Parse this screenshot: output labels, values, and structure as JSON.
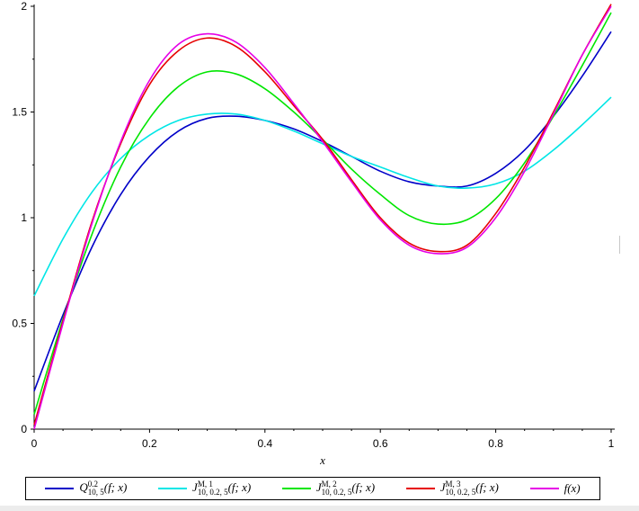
{
  "chart_data": {
    "type": "line",
    "xlabel": "x",
    "ylabel": "",
    "xlim": [
      0,
      1
    ],
    "ylim": [
      0,
      2
    ],
    "xticks": [
      0,
      0.2,
      0.4,
      0.6,
      0.8,
      1
    ],
    "yticks": [
      0,
      0.5,
      1,
      1.5,
      2
    ],
    "x_tick_labels": [
      "0",
      "0.2",
      "0.4",
      "0.6",
      "0.8",
      "1"
    ],
    "y_tick_labels": [
      "0",
      "0.5",
      "1",
      "1.5",
      "2"
    ],
    "grid": false,
    "legend_position": "bottom",
    "series": [
      {
        "name": "Q^{0.2}_{10,5}(f; x)",
        "color": "#0000c8",
        "x": [
          0,
          0.05,
          0.1,
          0.15,
          0.2,
          0.25,
          0.3,
          0.35,
          0.4,
          0.45,
          0.5,
          0.55,
          0.6,
          0.65,
          0.7,
          0.75,
          0.8,
          0.85,
          0.9,
          0.95,
          1
        ],
        "y": [
          0.18,
          0.54,
          0.86,
          1.11,
          1.29,
          1.41,
          1.47,
          1.48,
          1.46,
          1.42,
          1.36,
          1.29,
          1.22,
          1.17,
          1.15,
          1.15,
          1.21,
          1.32,
          1.48,
          1.67,
          1.88
        ]
      },
      {
        "name": "J^{M,1}_{10,0.2,5}(f; x)",
        "color": "#00e6e6",
        "x": [
          0,
          0.05,
          0.1,
          0.15,
          0.2,
          0.25,
          0.3,
          0.35,
          0.4,
          0.45,
          0.5,
          0.55,
          0.6,
          0.65,
          0.7,
          0.75,
          0.8,
          0.85,
          0.9,
          0.95,
          1
        ],
        "y": [
          0.63,
          0.9,
          1.12,
          1.28,
          1.39,
          1.46,
          1.49,
          1.49,
          1.46,
          1.41,
          1.35,
          1.29,
          1.24,
          1.19,
          1.15,
          1.14,
          1.16,
          1.22,
          1.32,
          1.44,
          1.57
        ]
      },
      {
        "name": "J^{M,2}_{10,0.2,5}(f; x)",
        "color": "#00e600",
        "x": [
          0,
          0.05,
          0.1,
          0.15,
          0.2,
          0.25,
          0.3,
          0.35,
          0.4,
          0.45,
          0.5,
          0.55,
          0.6,
          0.65,
          0.7,
          0.75,
          0.8,
          0.85,
          0.9,
          0.95,
          1
        ],
        "y": [
          0.07,
          0.52,
          0.92,
          1.24,
          1.47,
          1.62,
          1.69,
          1.68,
          1.61,
          1.5,
          1.37,
          1.23,
          1.11,
          1.01,
          0.97,
          0.99,
          1.09,
          1.26,
          1.48,
          1.72,
          1.97
        ]
      },
      {
        "name": "J^{M,3}_{10,0.2,5}(f; x)",
        "color": "#e60000",
        "x": [
          0,
          0.05,
          0.1,
          0.15,
          0.2,
          0.25,
          0.3,
          0.35,
          0.4,
          0.45,
          0.5,
          0.55,
          0.6,
          0.65,
          0.7,
          0.75,
          0.8,
          0.85,
          0.9,
          0.95,
          1
        ],
        "y": [
          0.02,
          0.51,
          0.98,
          1.35,
          1.63,
          1.79,
          1.85,
          1.81,
          1.69,
          1.53,
          1.37,
          1.18,
          1.0,
          0.88,
          0.84,
          0.87,
          1.02,
          1.24,
          1.5,
          1.77,
          2.01
        ]
      },
      {
        "name": "f(x)",
        "color": "#e600e6",
        "x": [
          0,
          0.05,
          0.1,
          0.15,
          0.2,
          0.25,
          0.3,
          0.35,
          0.4,
          0.45,
          0.5,
          0.55,
          0.6,
          0.65,
          0.7,
          0.75,
          0.8,
          0.85,
          0.9,
          0.95,
          1
        ],
        "y": [
          0.0,
          0.5,
          0.97,
          1.36,
          1.65,
          1.82,
          1.87,
          1.83,
          1.71,
          1.54,
          1.36,
          1.17,
          0.99,
          0.87,
          0.83,
          0.86,
          1.0,
          1.22,
          1.49,
          1.77,
          2.0
        ]
      }
    ]
  },
  "legend": [
    {
      "base": "Q",
      "sup": "0.2",
      "sub": "10, 5",
      "args": "(f; x)"
    },
    {
      "base": "J",
      "sup": "M, 1",
      "sub": "10, 0.2, 5",
      "args": "(f; x)"
    },
    {
      "base": "J",
      "sup": "M, 2",
      "sub": "10, 0.2, 5",
      "args": "(f; x)"
    },
    {
      "base": "J",
      "sup": "M, 3",
      "sub": "10, 0.2, 5",
      "args": "(f; x)"
    },
    {
      "base": "f(x)",
      "sup": "",
      "sub": "",
      "args": ""
    }
  ]
}
